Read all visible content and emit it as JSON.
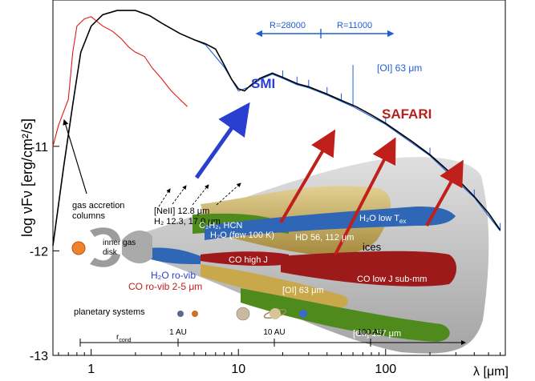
{
  "chart_data": {
    "type": "line",
    "ylabel": "log νFν [erg/cm²/s]",
    "xlabel": "λ [μm]",
    "x_scale": "log",
    "xlim": [
      0.55,
      650
    ],
    "ylim": [
      -13,
      -9.6
    ],
    "x_ticks": [
      1,
      10,
      100
    ],
    "x_tick_labels": [
      "1",
      "10",
      "100"
    ],
    "y_ticks": [
      -13,
      -12,
      -11
    ],
    "y_tick_labels": [
      "-13",
      "-12",
      "-11"
    ],
    "series": [
      {
        "color": "#000000",
        "points": [
          [
            0.55,
            -11.95
          ],
          [
            0.65,
            -11.2
          ],
          [
            0.75,
            -10.6
          ],
          [
            0.85,
            -10.1
          ],
          [
            1.0,
            -9.85
          ],
          [
            1.2,
            -9.74
          ],
          [
            1.5,
            -9.7
          ],
          [
            2.0,
            -9.7
          ],
          [
            2.5,
            -9.75
          ],
          [
            3.0,
            -9.82
          ],
          [
            4.0,
            -9.92
          ],
          [
            5.0,
            -9.98
          ],
          [
            6.0,
            -10.02
          ],
          [
            7.0,
            -10.07
          ],
          [
            8.0,
            -10.22
          ],
          [
            9.0,
            -10.36
          ],
          [
            10.0,
            -10.45
          ],
          [
            11.0,
            -10.47
          ],
          [
            12.0,
            -10.42
          ],
          [
            14.0,
            -10.35
          ],
          [
            17.0,
            -10.3
          ],
          [
            20.0,
            -10.34
          ],
          [
            25.0,
            -10.4
          ],
          [
            30.0,
            -10.43
          ],
          [
            40.0,
            -10.5
          ],
          [
            50.0,
            -10.56
          ],
          [
            63.0,
            -10.62
          ],
          [
            80.0,
            -10.7
          ],
          [
            100.0,
            -10.78
          ],
          [
            150.0,
            -10.95
          ],
          [
            200.0,
            -11.08
          ],
          [
            300.0,
            -11.3
          ],
          [
            400.0,
            -11.48
          ],
          [
            500.0,
            -11.64
          ],
          [
            600.0,
            -11.8
          ]
        ]
      },
      {
        "color": "#e21a1a",
        "points": [
          [
            0.55,
            -11.0
          ],
          [
            0.6,
            -10.8
          ],
          [
            0.7,
            -10.55
          ],
          [
            0.75,
            -10.1
          ],
          [
            0.8,
            -9.85
          ],
          [
            0.9,
            -9.78
          ],
          [
            1.0,
            -9.76
          ],
          [
            1.2,
            -9.85
          ],
          [
            1.4,
            -9.9
          ],
          [
            1.6,
            -9.97
          ],
          [
            1.8,
            -10.05
          ],
          [
            2.0,
            -10.1
          ],
          [
            2.3,
            -10.14
          ],
          [
            2.6,
            -10.25
          ],
          [
            3.0,
            -10.35
          ],
          [
            3.5,
            -10.47
          ],
          [
            4.0,
            -10.55
          ],
          [
            4.5,
            -10.62
          ]
        ]
      },
      {
        "color": "#1f5fd6",
        "points": [
          [
            5.0,
            -9.98
          ],
          [
            6.0,
            -10.03
          ],
          [
            8.0,
            -10.24
          ],
          [
            10.0,
            -10.47
          ],
          [
            12.0,
            -10.43
          ],
          [
            14.0,
            -10.36
          ],
          [
            17.0,
            -10.31
          ],
          [
            20.0,
            -10.35
          ],
          [
            25.0,
            -10.41
          ],
          [
            30.0,
            -10.44
          ],
          [
            40.0,
            -10.51
          ],
          [
            50.0,
            -10.57
          ],
          [
            60.0,
            -10.62
          ],
          [
            100.0,
            -10.79
          ],
          [
            200.0,
            -11.09
          ],
          [
            400.0,
            -11.49
          ],
          [
            600.0,
            -11.81
          ]
        ]
      }
    ],
    "annotations": {
      "oi_label": "[OI] 63 μm",
      "r1": "R=28000",
      "r2": "R=11000",
      "smi": "SMI",
      "safari": "SAFARI",
      "gas_accretion": [
        "gas accretion",
        "columns"
      ],
      "neii": "[NeII] 12.8 μm",
      "h2": "H₂ 12.3, 17.0 μm",
      "inner_gas": [
        "inner gas",
        "disk"
      ],
      "c2h2": "C₂H₂, HCN",
      "h2o_few": "H₂O (few 100 K)",
      "hd": "HD 56, 112 μm",
      "h2o_low": "H₂O low T",
      "h2o_low_sub": "ex",
      "ices": "ices",
      "co_high": "CO high J",
      "h2o_rovib": "H₂O ro-vib",
      "co_rovib": "CO ro-vib 2-5 μm",
      "oi63": "[OI] 63 μm",
      "co_low": "CO low J sub-mm",
      "cii": "[CII] 157 μm",
      "planetary": "planetary systems",
      "rcond": "r",
      "rcond_sub": "cond",
      "au1": "1 AU",
      "au10": "10 AU",
      "au100": "100 AU"
    }
  }
}
